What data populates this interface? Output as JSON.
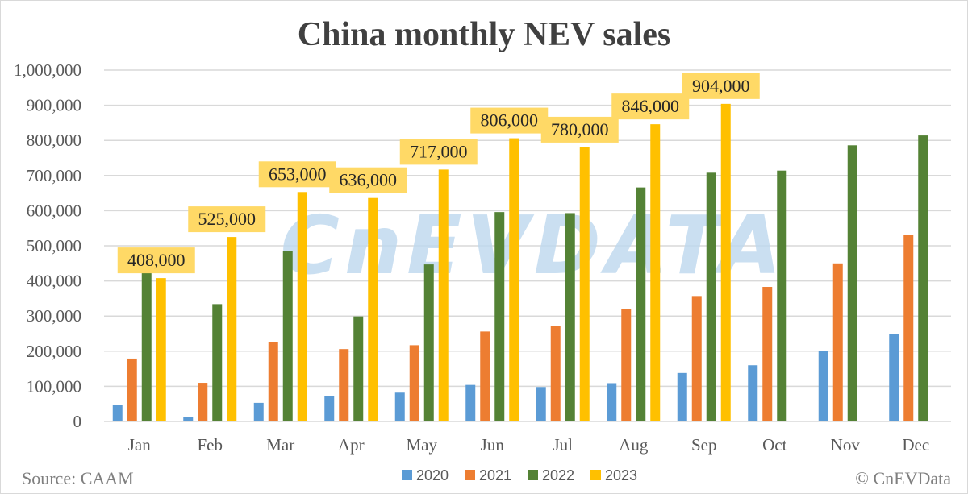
{
  "chart_data": {
    "type": "bar",
    "title": "China monthly NEV sales",
    "categories": [
      "Jan",
      "Feb",
      "Mar",
      "Apr",
      "May",
      "Jun",
      "Jul",
      "Aug",
      "Sep",
      "Oct",
      "Nov",
      "Dec"
    ],
    "series": [
      {
        "name": "2020",
        "color": "#5b9bd5",
        "values": [
          46000,
          13000,
          53000,
          72000,
          82000,
          104000,
          98000,
          109000,
          138000,
          160000,
          200000,
          248000
        ]
      },
      {
        "name": "2021",
        "color": "#ed7d31",
        "values": [
          179000,
          110000,
          226000,
          206000,
          217000,
          256000,
          271000,
          321000,
          357000,
          383000,
          450000,
          531000
        ]
      },
      {
        "name": "2022",
        "color": "#548235",
        "values": [
          431000,
          334000,
          484000,
          299000,
          447000,
          596000,
          593000,
          666000,
          708000,
          714000,
          786000,
          814000
        ]
      },
      {
        "name": "2023",
        "color": "#ffc000",
        "values": [
          408000,
          525000,
          653000,
          636000,
          717000,
          806000,
          780000,
          846000,
          904000,
          null,
          null,
          null
        ],
        "data_labels": [
          "408,000",
          "525,000",
          "653,000",
          "636,000",
          "717,000",
          "806,000",
          "780,000",
          "846,000",
          "904,000",
          null,
          null,
          null
        ],
        "label_background": "#ffd966"
      }
    ],
    "xlabel": "",
    "ylabel": "",
    "ylim": [
      0,
      1000000
    ],
    "y_ticks": [
      0,
      100000,
      200000,
      300000,
      400000,
      500000,
      600000,
      700000,
      800000,
      900000,
      1000000
    ],
    "y_tick_labels": [
      "0",
      "100,000",
      "200,000",
      "300,000",
      "400,000",
      "500,000",
      "600,000",
      "700,000",
      "800,000",
      "900,000",
      "1,000,000"
    ],
    "grid": true,
    "legend_position": "bottom",
    "source": "Source: CAAM",
    "copyright": "© CnEVData",
    "watermark": "CnEVDATA",
    "colors": {
      "grid": "#d9d9d9",
      "text": "#595959",
      "title": "#404040"
    }
  }
}
